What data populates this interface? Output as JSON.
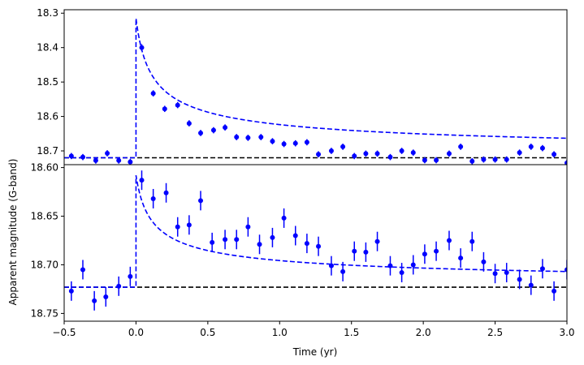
{
  "chart_data": [
    {
      "type": "scatter",
      "panel": "top",
      "title": "",
      "xlabel": "",
      "ylabel": "",
      "ylim": [
        18.74,
        18.29
      ],
      "y_inverted": true,
      "xlim": [
        -0.5,
        3.0
      ],
      "xticks_shown": false,
      "yticks": [
        18.3,
        18.4,
        18.5,
        18.6,
        18.7
      ],
      "ytick_labels": [
        "18.3",
        "18.4",
        "18.5",
        "18.6",
        "18.7"
      ],
      "baseline": 18.72,
      "model_peak": 18.315,
      "series": [
        {
          "style": "points-with-errorbars",
          "color": "#0000ff",
          "points": [
            {
              "x": -0.45,
              "y": 18.715,
              "err": 0.009
            },
            {
              "x": -0.37,
              "y": 18.718,
              "err": 0.009
            },
            {
              "x": -0.28,
              "y": 18.728,
              "err": 0.009
            },
            {
              "x": -0.2,
              "y": 18.707,
              "err": 0.009
            },
            {
              "x": -0.12,
              "y": 18.728,
              "err": 0.009
            },
            {
              "x": -0.04,
              "y": 18.732,
              "err": 0.009
            },
            {
              "x": 0.04,
              "y": 18.4,
              "err": 0.01
            },
            {
              "x": 0.12,
              "y": 18.533,
              "err": 0.009
            },
            {
              "x": 0.2,
              "y": 18.578,
              "err": 0.009
            },
            {
              "x": 0.29,
              "y": 18.567,
              "err": 0.009
            },
            {
              "x": 0.37,
              "y": 18.62,
              "err": 0.009
            },
            {
              "x": 0.45,
              "y": 18.648,
              "err": 0.009
            },
            {
              "x": 0.54,
              "y": 18.64,
              "err": 0.009
            },
            {
              "x": 0.62,
              "y": 18.632,
              "err": 0.009
            },
            {
              "x": 0.7,
              "y": 18.66,
              "err": 0.009
            },
            {
              "x": 0.78,
              "y": 18.662,
              "err": 0.009
            },
            {
              "x": 0.87,
              "y": 18.66,
              "err": 0.009
            },
            {
              "x": 0.95,
              "y": 18.672,
              "err": 0.009
            },
            {
              "x": 1.03,
              "y": 18.68,
              "err": 0.009
            },
            {
              "x": 1.11,
              "y": 18.678,
              "err": 0.009
            },
            {
              "x": 1.19,
              "y": 18.675,
              "err": 0.009
            },
            {
              "x": 1.27,
              "y": 18.71,
              "err": 0.009
            },
            {
              "x": 1.36,
              "y": 18.7,
              "err": 0.009
            },
            {
              "x": 1.44,
              "y": 18.688,
              "err": 0.009
            },
            {
              "x": 1.52,
              "y": 18.715,
              "err": 0.009
            },
            {
              "x": 1.6,
              "y": 18.708,
              "err": 0.009
            },
            {
              "x": 1.68,
              "y": 18.708,
              "err": 0.009
            },
            {
              "x": 1.77,
              "y": 18.718,
              "err": 0.009
            },
            {
              "x": 1.85,
              "y": 18.7,
              "err": 0.009
            },
            {
              "x": 1.93,
              "y": 18.705,
              "err": 0.009
            },
            {
              "x": 2.01,
              "y": 18.727,
              "err": 0.009
            },
            {
              "x": 2.09,
              "y": 18.727,
              "err": 0.009
            },
            {
              "x": 2.18,
              "y": 18.708,
              "err": 0.009
            },
            {
              "x": 2.26,
              "y": 18.688,
              "err": 0.009
            },
            {
              "x": 2.34,
              "y": 18.73,
              "err": 0.009
            },
            {
              "x": 2.42,
              "y": 18.725,
              "err": 0.009
            },
            {
              "x": 2.5,
              "y": 18.725,
              "err": 0.009
            },
            {
              "x": 2.58,
              "y": 18.725,
              "err": 0.009
            },
            {
              "x": 2.67,
              "y": 18.705,
              "err": 0.009
            },
            {
              "x": 2.75,
              "y": 18.688,
              "err": 0.009
            },
            {
              "x": 2.83,
              "y": 18.692,
              "err": 0.009
            },
            {
              "x": 2.91,
              "y": 18.71,
              "err": 0.009
            },
            {
              "x": 3.0,
              "y": 18.735,
              "err": 0.009
            }
          ]
        },
        {
          "style": "dashed-model",
          "color": "#0000ff"
        },
        {
          "style": "dashed-baseline",
          "color": "#000000"
        }
      ]
    },
    {
      "type": "scatter",
      "panel": "bottom",
      "title": "",
      "xlabel": "Time (yr)",
      "ylabel": "Apparent magnitude (G-band)",
      "ylim": [
        18.758,
        18.597
      ],
      "y_inverted": true,
      "xlim": [
        -0.5,
        3.0
      ],
      "xticks": [
        -0.5,
        0.0,
        0.5,
        1.0,
        1.5,
        2.0,
        2.5,
        3.0
      ],
      "xtick_labels": [
        "−0.5",
        "0.0",
        "0.5",
        "1.0",
        "1.5",
        "2.0",
        "2.5",
        "3.0"
      ],
      "yticks": [
        18.6,
        18.65,
        18.7,
        18.75
      ],
      "ytick_labels": [
        "18.60",
        "18.65",
        "18.70",
        "18.75"
      ],
      "baseline": 18.723,
      "model_peak": 18.608,
      "series": [
        {
          "style": "points-with-errorbars",
          "color": "#0000ff",
          "points": [
            {
              "x": -0.45,
              "y": 18.727,
              "err": 0.01
            },
            {
              "x": -0.37,
              "y": 18.705,
              "err": 0.01
            },
            {
              "x": -0.29,
              "y": 18.737,
              "err": 0.01
            },
            {
              "x": -0.21,
              "y": 18.733,
              "err": 0.01
            },
            {
              "x": -0.12,
              "y": 18.722,
              "err": 0.01
            },
            {
              "x": -0.04,
              "y": 18.712,
              "err": 0.01
            },
            {
              "x": 0.04,
              "y": 18.613,
              "err": 0.01
            },
            {
              "x": 0.12,
              "y": 18.632,
              "err": 0.01
            },
            {
              "x": 0.21,
              "y": 18.626,
              "err": 0.01
            },
            {
              "x": 0.29,
              "y": 18.661,
              "err": 0.01
            },
            {
              "x": 0.37,
              "y": 18.659,
              "err": 0.01
            },
            {
              "x": 0.45,
              "y": 18.634,
              "err": 0.01
            },
            {
              "x": 0.53,
              "y": 18.677,
              "err": 0.01
            },
            {
              "x": 0.62,
              "y": 18.674,
              "err": 0.01
            },
            {
              "x": 0.7,
              "y": 18.674,
              "err": 0.01
            },
            {
              "x": 0.78,
              "y": 18.661,
              "err": 0.01
            },
            {
              "x": 0.86,
              "y": 18.679,
              "err": 0.01
            },
            {
              "x": 0.95,
              "y": 18.672,
              "err": 0.01
            },
            {
              "x": 1.03,
              "y": 18.652,
              "err": 0.01
            },
            {
              "x": 1.11,
              "y": 18.67,
              "err": 0.01
            },
            {
              "x": 1.19,
              "y": 18.678,
              "err": 0.01
            },
            {
              "x": 1.27,
              "y": 18.681,
              "err": 0.01
            },
            {
              "x": 1.36,
              "y": 18.701,
              "err": 0.01
            },
            {
              "x": 1.44,
              "y": 18.707,
              "err": 0.01
            },
            {
              "x": 1.52,
              "y": 18.686,
              "err": 0.01
            },
            {
              "x": 1.6,
              "y": 18.687,
              "err": 0.01
            },
            {
              "x": 1.68,
              "y": 18.676,
              "err": 0.01
            },
            {
              "x": 1.77,
              "y": 18.701,
              "err": 0.01
            },
            {
              "x": 1.85,
              "y": 18.708,
              "err": 0.01
            },
            {
              "x": 1.93,
              "y": 18.7,
              "err": 0.01
            },
            {
              "x": 2.01,
              "y": 18.689,
              "err": 0.01
            },
            {
              "x": 2.09,
              "y": 18.686,
              "err": 0.01
            },
            {
              "x": 2.18,
              "y": 18.675,
              "err": 0.01
            },
            {
              "x": 2.26,
              "y": 18.693,
              "err": 0.01
            },
            {
              "x": 2.34,
              "y": 18.676,
              "err": 0.01
            },
            {
              "x": 2.42,
              "y": 18.697,
              "err": 0.01
            },
            {
              "x": 2.5,
              "y": 18.709,
              "err": 0.01
            },
            {
              "x": 2.58,
              "y": 18.708,
              "err": 0.01
            },
            {
              "x": 2.67,
              "y": 18.715,
              "err": 0.01
            },
            {
              "x": 2.75,
              "y": 18.721,
              "err": 0.01
            },
            {
              "x": 2.83,
              "y": 18.704,
              "err": 0.01
            },
            {
              "x": 2.91,
              "y": 18.727,
              "err": 0.01
            },
            {
              "x": 3.0,
              "y": 18.705,
              "err": 0.01
            }
          ]
        },
        {
          "style": "dashed-model",
          "color": "#0000ff"
        },
        {
          "style": "dashed-baseline",
          "color": "#000000"
        }
      ]
    }
  ]
}
